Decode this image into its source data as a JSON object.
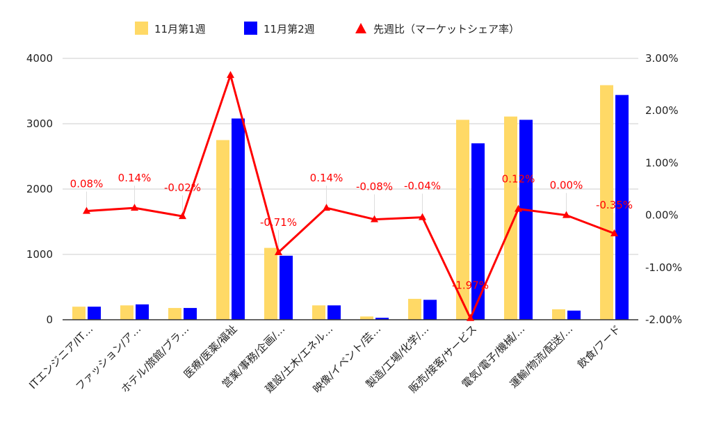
{
  "chart_data": {
    "type": "bar",
    "categories": [
      "ITエンジニア/IT…",
      "ファッション/ア…",
      "ホテル/旅館/ブラ…",
      "医療/医薬/福祉",
      "営業/事務/企画/…",
      "建設/土木/エネル…",
      "映像/イベント/芸…",
      "製造/工場/化学/…",
      "販売/接客/サービス",
      "電気/電子/機械/…",
      "運輸/物流/配送/…",
      "飲食/フード"
    ],
    "series": [
      {
        "name": "11月第1週",
        "type": "bar",
        "axis": "left",
        "color": "#ffd966",
        "values": [
          200,
          220,
          180,
          2750,
          1100,
          220,
          50,
          320,
          3060,
          3110,
          160,
          3590
        ]
      },
      {
        "name": "11月第2週",
        "type": "bar",
        "axis": "left",
        "color": "#0000ff",
        "values": [
          200,
          235,
          180,
          3080,
          980,
          220,
          30,
          305,
          2700,
          3060,
          140,
          3440
        ]
      },
      {
        "name": "先週比（マーケットシェア率）",
        "type": "line",
        "axis": "right",
        "color": "#ff0000",
        "values": [
          0.08,
          0.14,
          -0.02,
          2.68,
          -0.71,
          0.14,
          -0.08,
          -0.04,
          -1.97,
          0.12,
          0.0,
          -0.35
        ],
        "labels": [
          "0.08%",
          "0.14%",
          "-0.02%",
          "",
          "-0.71%",
          "0.14%",
          "-0.08%",
          "-0.04%",
          "-1.97%",
          "0.12%",
          "0.00%",
          "-0.35%"
        ]
      }
    ],
    "y_left": {
      "min": 0,
      "max": 4000,
      "ticks": [
        "0",
        "1000",
        "2000",
        "3000",
        "4000"
      ]
    },
    "y_right": {
      "min": -2.0,
      "max": 3.0,
      "ticks": [
        "-2.00%",
        "-1.00%",
        "0.00%",
        "1.00%",
        "2.00%",
        "3.00%"
      ]
    },
    "grid": true,
    "legend_position": "top"
  }
}
